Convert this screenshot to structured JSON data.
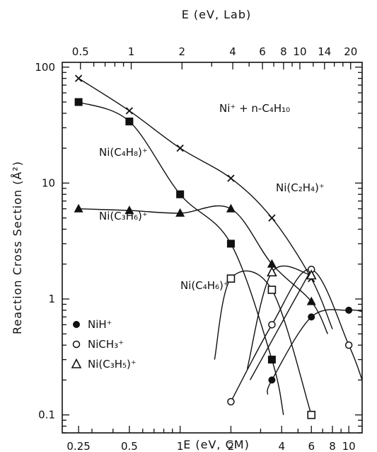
{
  "chart_data": {
    "type": "scatter",
    "title": "Ni⁺ + n-C₄H₁₀",
    "xlabel": "E (eV, CM)",
    "x2label": "E (eV, Lab)",
    "ylabel": "Reaction Cross Section (Å²)",
    "xscale": "log",
    "yscale": "log",
    "xlim": [
      0.2,
      12
    ],
    "ylim": [
      0.07,
      110
    ],
    "xticks": [
      "0.25",
      "0.5",
      "1",
      "2",
      "4",
      "6",
      "8",
      "10"
    ],
    "x2ticks": [
      "0.5",
      "1",
      "2",
      "4",
      "6",
      "8",
      "10",
      "14",
      "20"
    ],
    "yticks": [
      "0.1",
      "1",
      "10",
      "100"
    ],
    "series": [
      {
        "name": "Ni(C₂H₄)⁺",
        "marker": "x",
        "x": [
          0.25,
          0.5,
          1,
          2,
          3.5,
          6
        ],
        "y": [
          80,
          42,
          20,
          11,
          5,
          1.5
        ],
        "curve_x": [
          0.25,
          0.5,
          1,
          2,
          3.5,
          6,
          8
        ],
        "curve_y": [
          80,
          42,
          20,
          11,
          5,
          1.5,
          0.55
        ]
      },
      {
        "name": "Ni(C₄H₈)⁺",
        "marker": "filled-square",
        "x": [
          0.25,
          0.5,
          1,
          2,
          3.5
        ],
        "y": [
          50,
          34,
          8,
          3,
          0.3
        ],
        "curve_x": [
          0.25,
          0.5,
          1,
          2,
          3.5,
          4.1
        ],
        "curve_y": [
          50,
          34,
          8,
          3,
          0.3,
          0.1
        ]
      },
      {
        "name": "Ni(C₃H₆)⁺",
        "marker": "filled-triangle",
        "x": [
          0.25,
          0.5,
          1,
          2,
          3.5,
          6
        ],
        "y": [
          6,
          5.8,
          5.5,
          6,
          2,
          0.95
        ],
        "curve_x": [
          0.25,
          0.5,
          1,
          2,
          3.5,
          6,
          7.5
        ],
        "curve_y": [
          6,
          5.8,
          5.5,
          6,
          2,
          0.95,
          0.5
        ]
      },
      {
        "name": "Ni(C₄H₆)⁺",
        "marker": "open-square",
        "x": [
          2,
          3.5,
          6
        ],
        "y": [
          1.5,
          1.2,
          0.1
        ],
        "curve_x": [
          1.6,
          2,
          3.5,
          6
        ],
        "curve_y": [
          0.3,
          1.5,
          1.2,
          0.1
        ]
      },
      {
        "name": "NiH⁺",
        "marker": "filled-circle",
        "x": [
          3.5,
          6,
          10
        ],
        "y": [
          0.2,
          0.7,
          0.8
        ],
        "curve_x": [
          3.3,
          3.5,
          6,
          10,
          12
        ],
        "curve_y": [
          0.15,
          0.2,
          0.7,
          0.8,
          0.78
        ]
      },
      {
        "name": "NiCH₃⁺",
        "marker": "open-circle",
        "x": [
          2,
          3.5,
          6,
          10
        ],
        "y": [
          0.13,
          0.6,
          1.8,
          0.4
        ],
        "curve_x": [
          2,
          3.5,
          6,
          10,
          12
        ],
        "curve_y": [
          0.13,
          0.6,
          1.8,
          0.4,
          0.2
        ]
      },
      {
        "name": "Ni(C₃H₅)⁺",
        "marker": "open-triangle",
        "x": [
          3.5,
          6
        ],
        "y": [
          1.7,
          1.6
        ],
        "curve_x": [
          2.5,
          3.5,
          6
        ],
        "curve_y": [
          0.25,
          1.7,
          1.6
        ]
      }
    ],
    "extra_curves": [
      {
        "x": [
          2.6,
          6
        ],
        "y": [
          0.2,
          1.8
        ]
      }
    ],
    "series_labels": [
      {
        "text": "Ni⁺ + n-C₄H₁₀"
      },
      {
        "text": "Ni(C₄H₈)⁺"
      },
      {
        "text": "Ni(C₂H₄)⁺"
      },
      {
        "text": "Ni(C₃H₆)⁺"
      },
      {
        "text": "Ni(C₄H₆)⁺"
      }
    ],
    "legend": [
      {
        "marker": "filled-circle",
        "text": "NiH⁺"
      },
      {
        "marker": "open-circle",
        "text": "NiCH₃⁺"
      },
      {
        "marker": "open-triangle",
        "text": "Ni(C₃H₅)⁺"
      }
    ],
    "legend_position": "bottom-left",
    "grid": false
  }
}
